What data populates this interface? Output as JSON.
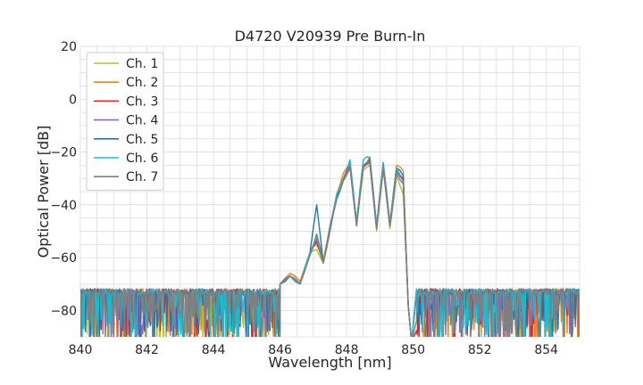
{
  "chart_data": {
    "type": "line",
    "title": "D4720 V20939 Pre Burn-In",
    "xlabel": "Wavelength [nm]",
    "ylabel": "Optical Power [dB]",
    "xlim": [
      840,
      855
    ],
    "ylim": [
      -90,
      20
    ],
    "xticks": [
      840,
      842,
      844,
      846,
      848,
      850,
      852,
      854
    ],
    "yticks": [
      20,
      0,
      -20,
      -40,
      -60,
      -80
    ],
    "ytick_labels": [
      "20",
      "0",
      "−20",
      "−40",
      "−60",
      "−80"
    ],
    "grid": true,
    "legend_position": "upper-left",
    "noise_floor_dB": -73,
    "series": [
      {
        "name": "Ch. 1",
        "color": "#bcbd22",
        "x": [
          846.0,
          846.3,
          846.6,
          846.9,
          847.1,
          847.3,
          847.5,
          847.7,
          847.9,
          848.1,
          848.3,
          848.5,
          848.7,
          848.9,
          849.1,
          849.3,
          849.5,
          849.7
        ],
        "y": [
          -70,
          -66,
          -69,
          -58,
          -57,
          -62,
          -50,
          -38,
          -31,
          -26,
          -48,
          -27,
          -25,
          -50,
          -27,
          -49,
          -29,
          -36
        ]
      },
      {
        "name": "Ch. 2",
        "color": "#ff7f0e",
        "x": [
          846.0,
          846.3,
          846.6,
          846.9,
          847.1,
          847.3,
          847.5,
          847.7,
          847.9,
          848.1,
          848.3,
          848.5,
          848.7,
          848.9,
          849.1,
          849.3,
          849.5,
          849.7
        ],
        "y": [
          -70,
          -66,
          -69,
          -58,
          -55,
          -61,
          -48,
          -36,
          -28,
          -24,
          -46,
          -25,
          -23,
          -48,
          -25,
          -47,
          -25,
          -27
        ]
      },
      {
        "name": "Ch. 3",
        "color": "#d62728",
        "x": [
          846.0,
          846.3,
          846.6,
          846.9,
          847.1,
          847.3,
          847.5,
          847.7,
          847.9,
          848.1,
          848.3,
          848.5,
          848.7,
          848.9,
          849.1,
          849.3,
          849.5,
          849.7
        ],
        "y": [
          -70,
          -67,
          -70,
          -59,
          -54,
          -62,
          -49,
          -37,
          -30,
          -25,
          -47,
          -25,
          -24,
          -49,
          -25,
          -48,
          -27,
          -30
        ]
      },
      {
        "name": "Ch. 4",
        "color": "#9467bd",
        "x": [
          846.0,
          846.3,
          846.6,
          846.9,
          847.1,
          847.3,
          847.5,
          847.7,
          847.9,
          848.1,
          848.3,
          848.5,
          848.7,
          848.9,
          849.1,
          849.3,
          849.5,
          849.7
        ],
        "y": [
          -70,
          -67,
          -70,
          -59,
          -53,
          -62,
          -50,
          -38,
          -31,
          -26,
          -48,
          -26,
          -24,
          -49,
          -26,
          -48,
          -28,
          -32
        ]
      },
      {
        "name": "Ch. 5",
        "color": "#1f77b4",
        "x": [
          846.0,
          846.3,
          846.6,
          846.9,
          847.1,
          847.3,
          847.5,
          847.7,
          847.9,
          848.1,
          848.3,
          848.5,
          848.7,
          848.9,
          849.1,
          849.3,
          849.5,
          849.7
        ],
        "y": [
          -70,
          -67,
          -70,
          -58,
          -40,
          -62,
          -48,
          -37,
          -30,
          -25,
          -47,
          -25,
          -23,
          -48,
          -24,
          -47,
          -26,
          -29
        ]
      },
      {
        "name": "Ch. 6",
        "color": "#17becf",
        "x": [
          846.0,
          846.3,
          846.6,
          846.9,
          847.1,
          847.3,
          847.5,
          847.7,
          847.9,
          848.1,
          848.3,
          848.5,
          848.7,
          848.9,
          849.1,
          849.3,
          849.5,
          849.7
        ],
        "y": [
          -70,
          -67,
          -70,
          -58,
          -52,
          -62,
          -48,
          -36,
          -30,
          -23,
          -47,
          -23,
          -22,
          -48,
          -24,
          -47,
          -26,
          -31
        ]
      },
      {
        "name": "Ch. 7",
        "color": "#7f7f7f",
        "x": [
          846.0,
          846.3,
          846.6,
          846.9,
          847.1,
          847.3,
          847.5,
          847.7,
          847.9,
          848.1,
          848.3,
          848.5,
          848.7,
          848.9,
          849.1,
          849.3,
          849.5,
          849.7
        ],
        "y": [
          -70,
          -67,
          -70,
          -59,
          -51,
          -62,
          -49,
          -38,
          -31,
          -25,
          -48,
          -25,
          -22,
          -49,
          -25,
          -48,
          -27,
          -31
        ]
      }
    ]
  }
}
